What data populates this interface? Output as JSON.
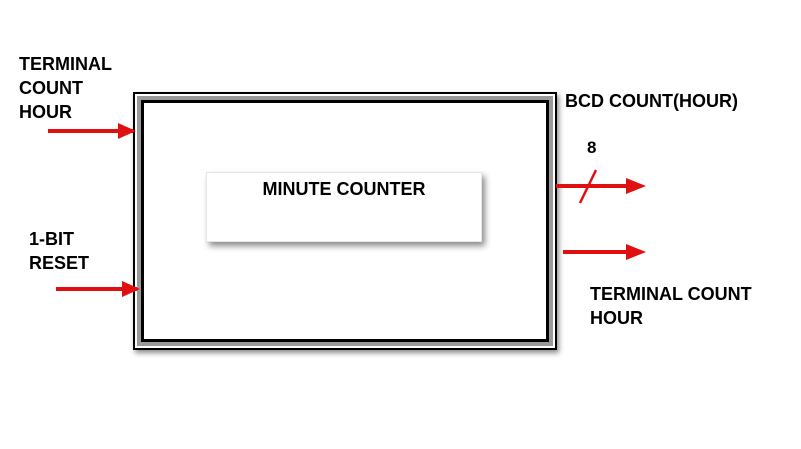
{
  "block": {
    "title": "MINUTE COUNTER"
  },
  "inputs": {
    "terminal_count": [
      "TERMINAL",
      "COUNT",
      "HOUR"
    ],
    "reset": [
      "1-BIT",
      "RESET"
    ]
  },
  "outputs": {
    "bcd_label": "BCD COUNT(HOUR)",
    "bus_width": "8",
    "terminal_count": [
      "TERMINAL COUNT",
      "HOUR"
    ]
  },
  "colors": {
    "arrow": "#e01010",
    "border_gray": "#9a9a9a",
    "text": "#000000"
  }
}
